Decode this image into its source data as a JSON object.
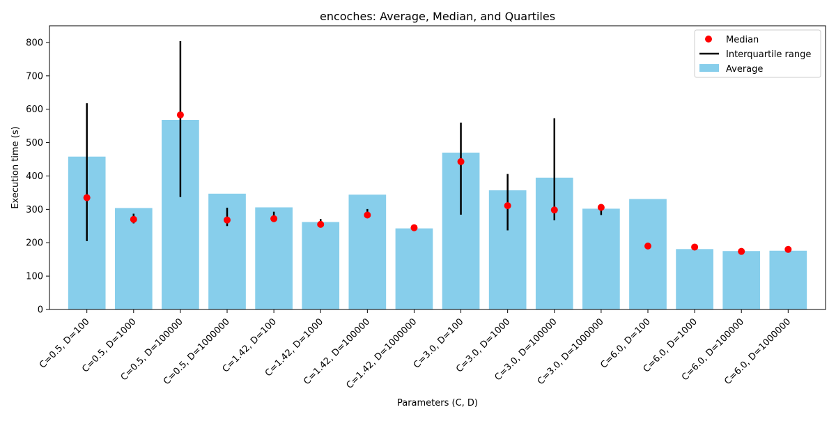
{
  "chart_data": {
    "type": "bar",
    "title": "encoches: Average, Median, and Quartiles",
    "xlabel": "Parameters (C, D)",
    "ylabel": "Execution time (s)",
    "ylim": [
      0,
      850
    ],
    "yticks": [
      "0",
      "100",
      "200",
      "300",
      "400",
      "500",
      "600",
      "700",
      "800"
    ],
    "grid": false,
    "legend_position": "top-right",
    "categories": [
      "C=0.5, D=100",
      "C=0.5, D=1000",
      "C=0.5, D=100000",
      "C=0.5, D=1000000",
      "C=1.42, D=100",
      "C=1.42, D=1000",
      "C=1.42, D=100000",
      "C=1.42, D=1000000",
      "C=3.0, D=100",
      "C=3.0, D=1000",
      "C=3.0, D=100000",
      "C=3.0, D=1000000",
      "C=6.0, D=100",
      "C=6.0, D=1000",
      "C=6.0, D=100000",
      "C=6.0, D=1000000"
    ],
    "series": [
      {
        "name": "Average",
        "kind": "bar",
        "color": "#87ceeb",
        "values": [
          458,
          304,
          568,
          347,
          306,
          262,
          344,
          243,
          470,
          357,
          395,
          302,
          331,
          181,
          175,
          176
        ]
      },
      {
        "name": "Median",
        "kind": "point",
        "color": "#ff0000",
        "values": [
          335,
          270,
          583,
          268,
          272,
          255,
          283,
          245,
          443,
          311,
          298,
          306,
          190,
          187,
          174,
          180
        ]
      },
      {
        "name": "Interquartile range",
        "kind": "range",
        "color": "#000000",
        "low": [
          205,
          258,
          337,
          250,
          265,
          250,
          276,
          241,
          284,
          237,
          267,
          283,
          187,
          178,
          170,
          176
        ],
        "high": [
          618,
          287,
          804,
          305,
          293,
          271,
          301,
          249,
          560,
          406,
          573,
          308,
          193,
          190,
          182,
          183
        ]
      }
    ]
  }
}
